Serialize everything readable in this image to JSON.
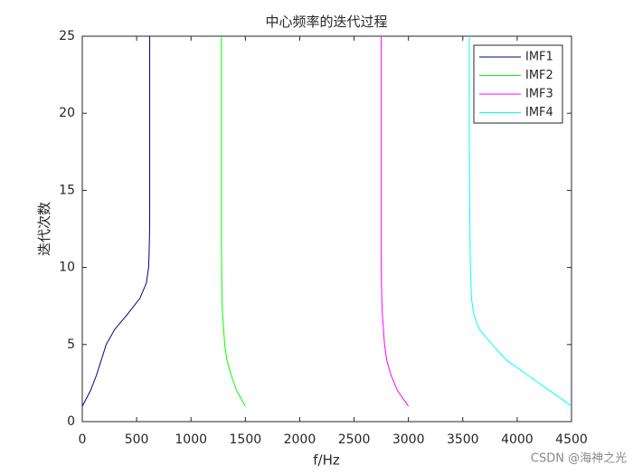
{
  "chart_data": {
    "type": "line",
    "title": "中心频率的迭代过程",
    "x_label": "f/Hz",
    "y_label": "迭代次数",
    "y": [
      1,
      2,
      3,
      4,
      5,
      6,
      7,
      8,
      9,
      10,
      11,
      12,
      13,
      14,
      15,
      16,
      17,
      18,
      19,
      20,
      21,
      22,
      23,
      24,
      25
    ],
    "series": [
      {
        "name": "IMF1",
        "color": "#00007f",
        "x": [
          0,
          75,
          130,
          175,
          220,
          300,
          420,
          530,
          590,
          610,
          615,
          618,
          620,
          620,
          620,
          620,
          620,
          620,
          620,
          620,
          620,
          620,
          620,
          620,
          620
        ]
      },
      {
        "name": "IMF2",
        "color": "#00ff00",
        "x": [
          1500,
          1420,
          1370,
          1330,
          1310,
          1300,
          1290,
          1285,
          1283,
          1282,
          1281,
          1280,
          1280,
          1280,
          1280,
          1280,
          1280,
          1280,
          1280,
          1280,
          1280,
          1280,
          1280,
          1280,
          1280
        ]
      },
      {
        "name": "IMF3",
        "color": "#ff00ff",
        "x": [
          3000,
          2900,
          2840,
          2800,
          2780,
          2770,
          2760,
          2755,
          2752,
          2751,
          2750,
          2750,
          2750,
          2750,
          2750,
          2750,
          2750,
          2750,
          2750,
          2750,
          2750,
          2750,
          2750,
          2750,
          2750
        ]
      },
      {
        "name": "IMF4",
        "color": "#00ffff",
        "x": [
          4500,
          4300,
          4100,
          3900,
          3770,
          3650,
          3600,
          3580,
          3575,
          3570,
          3568,
          3566,
          3565,
          3564,
          3563,
          3562,
          3561,
          3560,
          3560,
          3560,
          3560,
          3560,
          3560,
          3560,
          3560
        ]
      }
    ],
    "xlim": [
      0,
      4500
    ],
    "xticks": [
      0,
      500,
      1000,
      1500,
      2000,
      2500,
      3000,
      3500,
      4000,
      4500
    ],
    "ylim": [
      0,
      25
    ],
    "yticks": [
      0,
      5,
      10,
      15,
      20,
      25
    ],
    "legend": "northeast",
    "watermark": "CSDN @海神之光"
  }
}
